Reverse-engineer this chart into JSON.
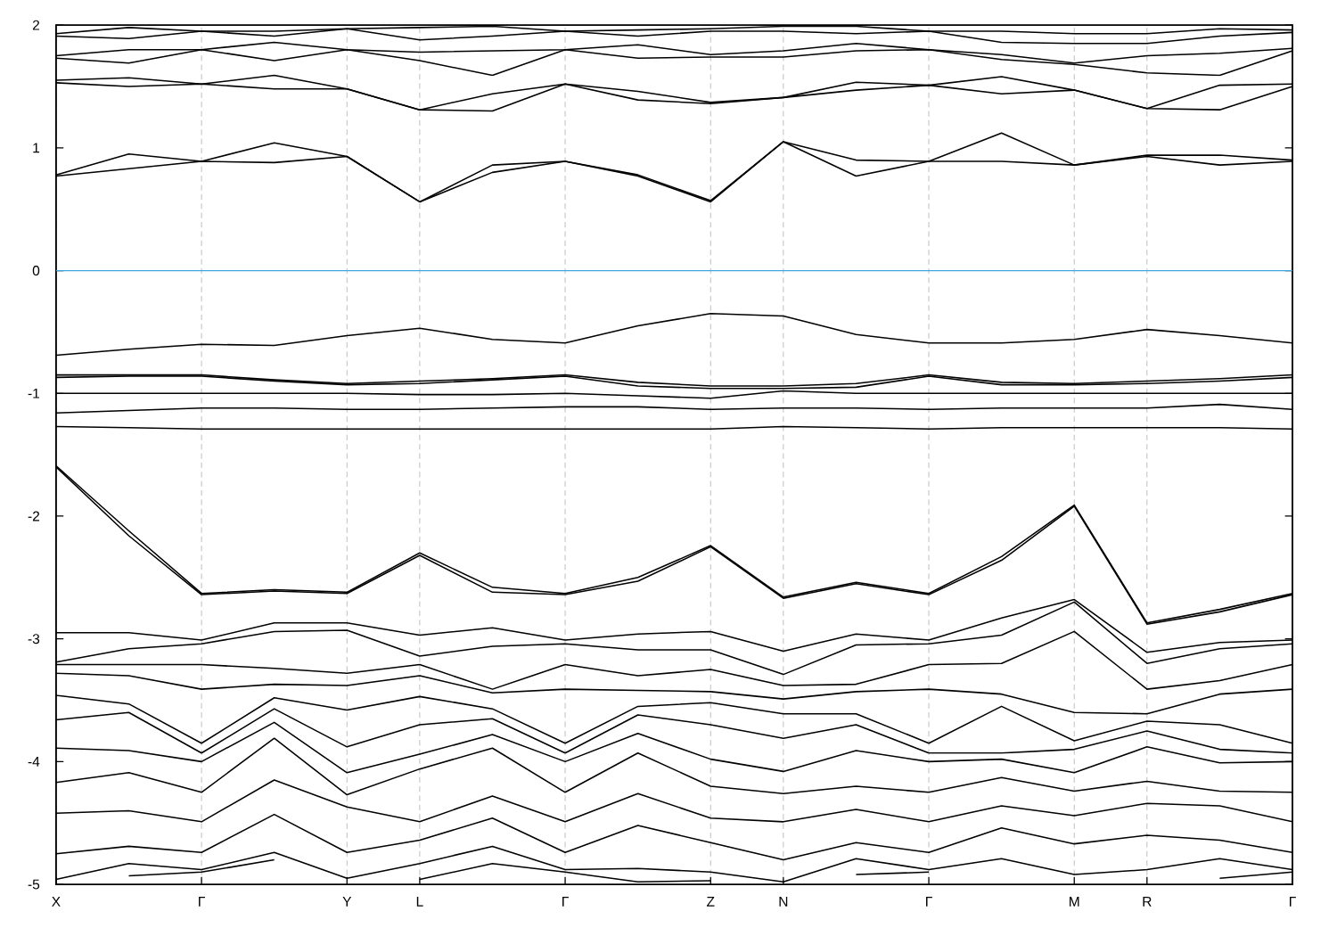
{
  "chart_data": {
    "type": "line",
    "categories": [
      "X",
      null,
      "Γ",
      null,
      "Y",
      "L",
      null,
      "Γ",
      null,
      "Z",
      "N",
      null,
      "Γ",
      null,
      "M",
      "R",
      null,
      "Γ"
    ],
    "ylim": [
      -5,
      2
    ],
    "yticks": [
      -5,
      -4,
      -3,
      -2,
      -1,
      0,
      1,
      2
    ],
    "grid": "x",
    "ref_lines": [
      {
        "axis": "y",
        "value": 0,
        "color": "#3ea6de"
      }
    ],
    "series": [
      {
        "color": "#000000",
        "values": [
          0.77,
          0.83,
          0.89,
          0.88,
          0.93,
          0.56,
          0.8,
          0.89,
          0.77,
          0.56,
          1.05,
          0.77,
          0.89,
          0.89,
          0.86,
          0.93,
          0.86,
          0.89
        ]
      },
      {
        "color": "#000000",
        "values": [
          0.78,
          0.95,
          0.89,
          1.04,
          0.93,
          0.56,
          0.86,
          0.89,
          0.78,
          0.57,
          1.05,
          0.9,
          0.89,
          1.12,
          0.86,
          0.94,
          0.94,
          0.9
        ]
      },
      {
        "color": "#000000",
        "values": [
          1.53,
          1.5,
          1.52,
          1.48,
          1.48,
          1.31,
          1.3,
          1.52,
          1.39,
          1.36,
          1.41,
          1.47,
          1.51,
          1.44,
          1.47,
          1.32,
          1.31,
          1.5
        ]
      },
      {
        "color": "#000000",
        "values": [
          1.55,
          1.57,
          1.52,
          1.59,
          1.48,
          1.31,
          1.44,
          1.52,
          1.46,
          1.37,
          1.41,
          1.535,
          1.51,
          1.58,
          1.47,
          1.32,
          1.51,
          1.52
        ]
      },
      {
        "color": "#000000",
        "values": [
          1.73,
          1.69,
          1.8,
          1.71,
          1.8,
          1.71,
          1.59,
          1.8,
          1.73,
          1.74,
          1.74,
          1.79,
          1.8,
          1.72,
          1.68,
          1.61,
          1.59,
          1.79
        ]
      },
      {
        "color": "#000000",
        "values": [
          1.75,
          1.8,
          1.8,
          1.86,
          1.8,
          1.78,
          1.79,
          1.8,
          1.84,
          1.76,
          1.79,
          1.85,
          1.8,
          1.76,
          1.69,
          1.75,
          1.77,
          1.81
        ]
      },
      {
        "color": "#000000",
        "values": [
          1.91,
          1.89,
          1.95,
          1.91,
          1.97,
          1.88,
          1.91,
          1.95,
          1.91,
          1.95,
          1.95,
          1.93,
          1.95,
          1.86,
          1.85,
          1.85,
          1.91,
          1.94
        ]
      },
      {
        "color": "#000000",
        "values": [
          1.93,
          1.98,
          1.95,
          1.95,
          1.97,
          1.98,
          1.99,
          1.95,
          1.96,
          1.97,
          1.99,
          1.99,
          1.95,
          1.95,
          1.93,
          1.93,
          1.97,
          1.96
        ]
      },
      {
        "color": "#000000",
        "values": [
          -0.69,
          -0.64,
          -0.6,
          -0.61,
          -0.53,
          -0.47,
          -0.56,
          -0.59,
          -0.45,
          -0.35,
          -0.37,
          -0.52,
          -0.59,
          -0.59,
          -0.56,
          -0.48,
          -0.53,
          -0.59
        ]
      },
      {
        "color": "#000000",
        "values": [
          -0.85,
          -0.85,
          -0.85,
          -0.89,
          -0.92,
          -0.9,
          -0.88,
          -0.85,
          -0.91,
          -0.94,
          -0.94,
          -0.92,
          -0.85,
          -0.91,
          -0.92,
          -0.9,
          -0.88,
          -0.85
        ]
      },
      {
        "color": "#000000",
        "values": [
          -0.87,
          -0.86,
          -0.86,
          -0.9,
          -0.93,
          -0.92,
          -0.89,
          -0.86,
          -0.94,
          -0.96,
          -0.96,
          -0.95,
          -0.86,
          -0.93,
          -0.93,
          -0.92,
          -0.9,
          -0.87
        ]
      },
      {
        "color": "#000000",
        "values": [
          -1.0,
          -1.0,
          -1.0,
          -1.0,
          -1.0,
          -1.01,
          -1.01,
          -1.0,
          -1.02,
          -1.04,
          -0.98,
          -1.0,
          -1.0,
          -1.0,
          -1.0,
          -1.0,
          -1.0,
          -1.0
        ]
      },
      {
        "color": "#000000",
        "values": [
          -1.16,
          -1.14,
          -1.12,
          -1.12,
          -1.13,
          -1.13,
          -1.12,
          -1.11,
          -1.11,
          -1.13,
          -1.12,
          -1.12,
          -1.13,
          -1.12,
          -1.12,
          -1.12,
          -1.09,
          -1.13
        ]
      },
      {
        "color": "#000000",
        "values": [
          -1.27,
          -1.28,
          -1.29,
          -1.29,
          -1.29,
          -1.29,
          -1.29,
          -1.29,
          -1.29,
          -1.29,
          -1.27,
          -1.28,
          -1.29,
          -1.28,
          -1.28,
          -1.28,
          -1.28,
          -1.29
        ]
      },
      {
        "color": "#000000",
        "values": [
          -1.59,
          -2.12,
          -2.63,
          -2.6,
          -2.62,
          -2.3,
          -2.58,
          -2.63,
          -2.5,
          -2.24,
          -2.66,
          -2.54,
          -2.63,
          -2.33,
          -1.91,
          -2.87,
          -2.76,
          -2.63
        ]
      },
      {
        "color": "#000000",
        "values": [
          -1.6,
          -2.16,
          -2.64,
          -2.61,
          -2.63,
          -2.32,
          -2.62,
          -2.64,
          -2.53,
          -2.25,
          -2.67,
          -2.55,
          -2.64,
          -2.36,
          -1.92,
          -2.88,
          -2.78,
          -2.64
        ]
      },
      {
        "color": "#000000",
        "values": [
          -2.95,
          -2.95,
          -3.01,
          -2.87,
          -2.87,
          -2.97,
          -2.91,
          -3.01,
          -2.96,
          -2.94,
          -3.1,
          -2.96,
          -3.01,
          -2.83,
          -2.68,
          -3.11,
          -3.03,
          -3.01
        ]
      },
      {
        "color": "#000000",
        "values": [
          -3.19,
          -3.08,
          -3.04,
          -2.94,
          -2.93,
          -3.14,
          -3.06,
          -3.04,
          -3.09,
          -3.09,
          -3.29,
          -3.05,
          -3.04,
          -2.97,
          -2.7,
          -3.2,
          -3.08,
          -3.04
        ]
      },
      {
        "color": "#000000",
        "values": [
          -3.21,
          -3.21,
          -3.21,
          -3.24,
          -3.28,
          -3.21,
          -3.41,
          -3.21,
          -3.3,
          -3.25,
          -3.38,
          -3.37,
          -3.21,
          -3.2,
          -2.94,
          -3.41,
          -3.34,
          -3.21
        ]
      },
      {
        "color": "#000000",
        "values": [
          -3.28,
          -3.3,
          -3.41,
          -3.37,
          -3.38,
          -3.3,
          -3.44,
          -3.41,
          -3.42,
          -3.43,
          -3.49,
          -3.43,
          -3.41,
          -3.45,
          -3.6,
          -3.61,
          -3.45,
          -3.41
        ]
      },
      {
        "color": "#000000",
        "values": [
          -3.46,
          -3.53,
          -3.85,
          -3.48,
          -3.58,
          -3.47,
          -3.57,
          -3.85,
          -3.55,
          -3.52,
          -3.61,
          -3.61,
          -3.85,
          -3.55,
          -3.83,
          -3.67,
          -3.7,
          -3.85
        ]
      },
      {
        "color": "#000000",
        "values": [
          -3.66,
          -3.6,
          -3.93,
          -3.57,
          -3.88,
          -3.7,
          -3.65,
          -3.93,
          -3.62,
          -3.7,
          -3.81,
          -3.7,
          -3.93,
          -3.93,
          -3.9,
          -3.75,
          -3.9,
          -3.93
        ]
      },
      {
        "color": "#000000",
        "values": [
          -3.89,
          -3.91,
          -4.0,
          -3.68,
          -4.09,
          -3.94,
          -3.78,
          -4.0,
          -3.77,
          -3.98,
          -4.08,
          -3.91,
          -4.0,
          -3.98,
          -4.09,
          -3.88,
          -4.01,
          -4.0
        ]
      },
      {
        "color": "#000000",
        "values": [
          -4.17,
          -4.09,
          -4.25,
          -3.81,
          -4.27,
          -4.06,
          -3.89,
          -4.25,
          -3.93,
          -4.2,
          -4.26,
          -4.2,
          -4.25,
          -4.13,
          -4.24,
          -4.16,
          -4.24,
          -4.25
        ]
      },
      {
        "color": "#000000",
        "values": [
          -4.42,
          -4.4,
          -4.49,
          -4.15,
          -4.37,
          -4.49,
          -4.28,
          -4.49,
          -4.26,
          -4.46,
          -4.49,
          -4.39,
          -4.49,
          -4.36,
          -4.44,
          -4.34,
          -4.36,
          -4.49
        ]
      },
      {
        "color": "#000000",
        "values": [
          -4.75,
          -4.69,
          -4.74,
          -4.43,
          -4.74,
          -4.64,
          -4.46,
          -4.74,
          -4.52,
          -4.66,
          -4.8,
          -4.66,
          -4.74,
          -4.54,
          -4.67,
          -4.6,
          -4.64,
          -4.74
        ]
      },
      {
        "color": "#000000",
        "values": [
          -4.96,
          -4.83,
          -4.88,
          -4.74,
          -4.95,
          -4.83,
          -4.69,
          -4.88,
          -4.87,
          -4.9,
          -4.98,
          -4.79,
          -4.88,
          -4.79,
          -4.92,
          -4.88,
          -4.79,
          -4.88
        ]
      },
      {
        "color": "#000000",
        "values": [
          null,
          -4.93,
          -4.9,
          -4.8,
          null,
          -4.96,
          -4.83,
          -4.9,
          -4.98,
          -4.97,
          null,
          -4.92,
          -4.9,
          null,
          null,
          null,
          -4.95,
          -4.9
        ]
      }
    ]
  }
}
